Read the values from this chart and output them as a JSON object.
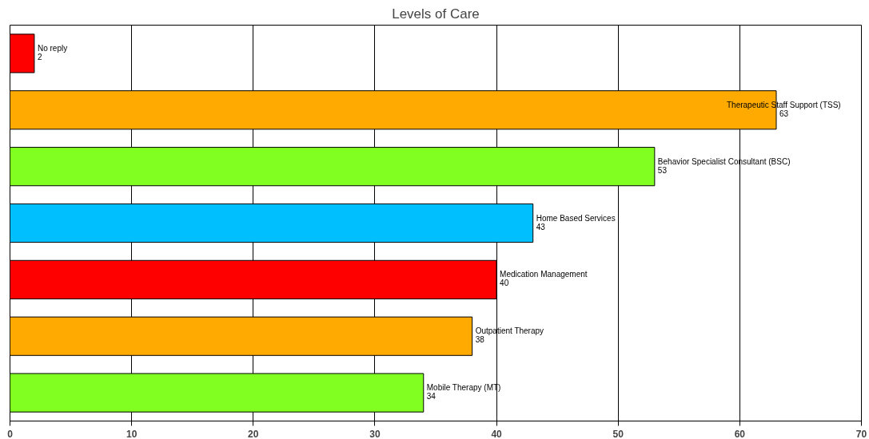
{
  "chart_data": {
    "type": "bar",
    "orientation": "horizontal",
    "title": "Levels of Care",
    "categories": [
      "No reply",
      "Therapeutic Staff Support (TSS)",
      "Behavior Specialist Consultant (BSC)",
      "Home Based Services",
      "Medication Management",
      "Outpatient Therapy",
      "Mobile Therapy (MT)"
    ],
    "values": [
      2,
      63,
      53,
      43,
      40,
      38,
      34
    ],
    "colors": [
      "#ff0000",
      "#ffaa00",
      "#80ff20",
      "#00bfff",
      "#ff0000",
      "#ffaa00",
      "#80ff20"
    ],
    "xlim": [
      0,
      70
    ],
    "xticks": [
      0,
      10,
      20,
      30,
      40,
      50,
      60,
      70
    ],
    "grid": "x",
    "tick_labels": "x",
    "data_labels": true
  }
}
